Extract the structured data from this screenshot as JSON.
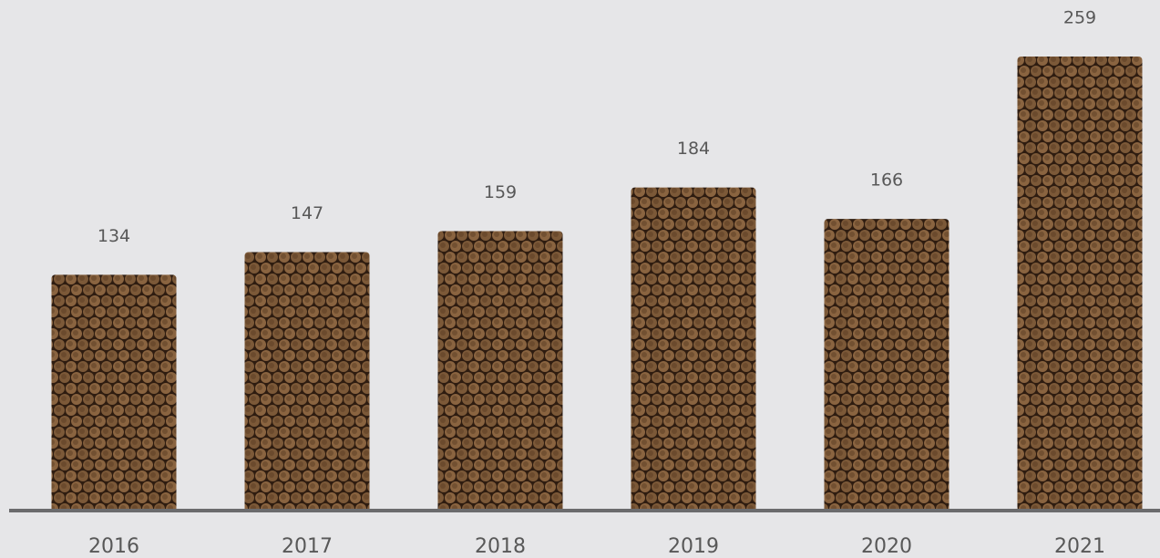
{
  "chart_data": {
    "type": "bar",
    "categories": [
      "2016",
      "2017",
      "2018",
      "2019",
      "2020",
      "2021"
    ],
    "values": [
      134,
      147,
      159,
      184,
      166,
      259
    ],
    "color": "#8a6440"
  }
}
